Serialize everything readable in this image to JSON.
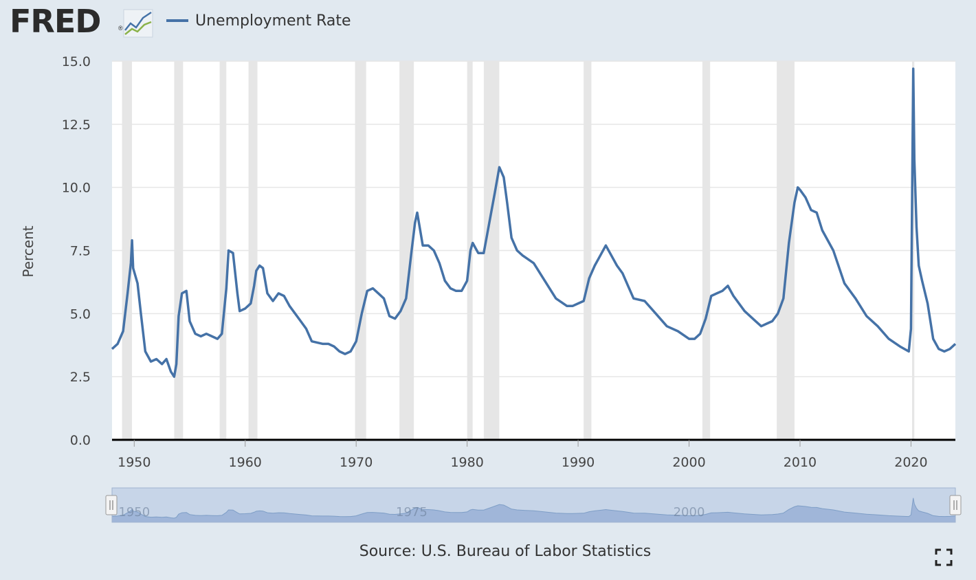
{
  "header": {
    "logo_text": "FRED",
    "logo_reg": "®"
  },
  "legend": {
    "series_label": "Unemployment Rate",
    "color": "#4572a7"
  },
  "footer": {
    "source": "Source: U.S. Bureau of Labor Statistics"
  },
  "navigator": {
    "labels": [
      "1950",
      "1975",
      "2000"
    ]
  },
  "colors": {
    "background": "#e1e9f0",
    "plot_background": "#ffffff",
    "recession_band": "#e6e6e6",
    "series_line": "#4572a7",
    "navigator_fill": "#b8c9e6"
  },
  "chart_data": {
    "type": "line",
    "title": "",
    "xlabel": "",
    "ylabel": "Percent",
    "xlim": [
      1948.0,
      2024.0
    ],
    "ylim": [
      0,
      15
    ],
    "y_ticks": [
      0.0,
      2.5,
      5.0,
      7.5,
      10.0,
      12.5,
      15.0
    ],
    "y_tick_labels": [
      "0.0",
      "2.5",
      "5.0",
      "7.5",
      "10.0",
      "12.5",
      "15.0"
    ],
    "x_ticks": [
      1950,
      1960,
      1970,
      1980,
      1990,
      2000,
      2010,
      2020
    ],
    "x_tick_labels": [
      "1950",
      "1960",
      "1970",
      "1980",
      "1990",
      "2000",
      "2010",
      "2020"
    ],
    "grid": "horizontal",
    "recessions": [
      [
        1948.9,
        1949.8
      ],
      [
        1953.6,
        1954.4
      ],
      [
        1957.7,
        1958.3
      ],
      [
        1960.3,
        1961.1
      ],
      [
        1969.9,
        1970.9
      ],
      [
        1973.9,
        1975.2
      ],
      [
        1980.0,
        1980.5
      ],
      [
        1981.5,
        1982.9
      ],
      [
        1990.5,
        1991.2
      ],
      [
        2001.2,
        2001.9
      ],
      [
        2007.9,
        2009.5
      ],
      [
        2020.1,
        2020.3
      ]
    ],
    "series": [
      {
        "name": "Unemployment Rate",
        "x": [
          1948.0,
          1948.5,
          1949.0,
          1949.4,
          1949.7,
          1949.8,
          1949.9,
          1950.3,
          1950.6,
          1951.0,
          1951.5,
          1952.0,
          1952.5,
          1952.9,
          1953.3,
          1953.6,
          1953.8,
          1954.0,
          1954.3,
          1954.7,
          1955.0,
          1955.5,
          1956.0,
          1956.5,
          1957.0,
          1957.5,
          1957.9,
          1958.3,
          1958.5,
          1958.9,
          1959.3,
          1959.5,
          1960.0,
          1960.5,
          1960.8,
          1961.0,
          1961.3,
          1961.6,
          1962.0,
          1962.5,
          1963.0,
          1963.5,
          1964.0,
          1964.5,
          1965.0,
          1965.5,
          1966.0,
          1967.0,
          1967.5,
          1968.0,
          1968.5,
          1969.0,
          1969.5,
          1970.0,
          1970.5,
          1971.0,
          1971.5,
          1972.0,
          1972.5,
          1973.0,
          1973.5,
          1974.0,
          1974.5,
          1975.0,
          1975.3,
          1975.5,
          1976.0,
          1976.5,
          1977.0,
          1977.5,
          1978.0,
          1978.5,
          1979.0,
          1979.5,
          1980.0,
          1980.3,
          1980.5,
          1981.0,
          1981.5,
          1982.0,
          1982.5,
          1982.9,
          1983.3,
          1983.6,
          1984.0,
          1984.5,
          1985.0,
          1986.0,
          1987.0,
          1988.0,
          1989.0,
          1989.5,
          1990.0,
          1990.5,
          1991.0,
          1991.5,
          1992.0,
          1992.5,
          1993.0,
          1993.5,
          1994.0,
          1994.5,
          1995.0,
          1996.0,
          1997.0,
          1998.0,
          1999.0,
          2000.0,
          2000.5,
          2001.0,
          2001.5,
          2002.0,
          2002.5,
          2003.0,
          2003.5,
          2004.0,
          2005.0,
          2006.0,
          2006.5,
          2007.0,
          2007.5,
          2008.0,
          2008.5,
          2009.0,
          2009.5,
          2009.8,
          2010.0,
          2010.5,
          2011.0,
          2011.5,
          2012.0,
          2013.0,
          2014.0,
          2015.0,
          2016.0,
          2017.0,
          2018.0,
          2019.0,
          2019.8,
          2020.0,
          2020.2,
          2020.3,
          2020.5,
          2020.7,
          2021.0,
          2021.5,
          2022.0,
          2022.5,
          2023.0,
          2023.5,
          2024.0
        ],
        "values": [
          3.6,
          3.8,
          4.3,
          5.8,
          7.0,
          7.9,
          6.8,
          6.2,
          5.0,
          3.5,
          3.1,
          3.2,
          3.0,
          3.2,
          2.7,
          2.5,
          3.0,
          4.9,
          5.8,
          5.9,
          4.7,
          4.2,
          4.1,
          4.2,
          4.1,
          4.0,
          4.2,
          6.0,
          7.5,
          7.4,
          5.8,
          5.1,
          5.2,
          5.4,
          6.1,
          6.7,
          6.9,
          6.8,
          5.8,
          5.5,
          5.8,
          5.7,
          5.3,
          5.0,
          4.7,
          4.4,
          3.9,
          3.8,
          3.8,
          3.7,
          3.5,
          3.4,
          3.5,
          3.9,
          5.0,
          5.9,
          6.0,
          5.8,
          5.6,
          4.9,
          4.8,
          5.1,
          5.6,
          7.5,
          8.6,
          9.0,
          7.7,
          7.7,
          7.5,
          7.0,
          6.3,
          6.0,
          5.9,
          5.9,
          6.3,
          7.5,
          7.8,
          7.4,
          7.4,
          8.6,
          9.8,
          10.8,
          10.4,
          9.4,
          8.0,
          7.5,
          7.3,
          7.0,
          6.3,
          5.6,
          5.3,
          5.3,
          5.4,
          5.5,
          6.4,
          6.9,
          7.3,
          7.7,
          7.3,
          6.9,
          6.6,
          6.1,
          5.6,
          5.5,
          5.0,
          4.5,
          4.3,
          4.0,
          4.0,
          4.2,
          4.8,
          5.7,
          5.8,
          5.9,
          6.1,
          5.7,
          5.1,
          4.7,
          4.5,
          4.6,
          4.7,
          5.0,
          5.6,
          7.8,
          9.4,
          10.0,
          9.9,
          9.6,
          9.1,
          9.0,
          8.3,
          7.5,
          6.2,
          5.6,
          4.9,
          4.5,
          4.0,
          3.7,
          3.5,
          4.4,
          14.7,
          11.1,
          8.4,
          6.9,
          6.3,
          5.4,
          4.0,
          3.6,
          3.5,
          3.6,
          3.8
        ]
      }
    ]
  }
}
